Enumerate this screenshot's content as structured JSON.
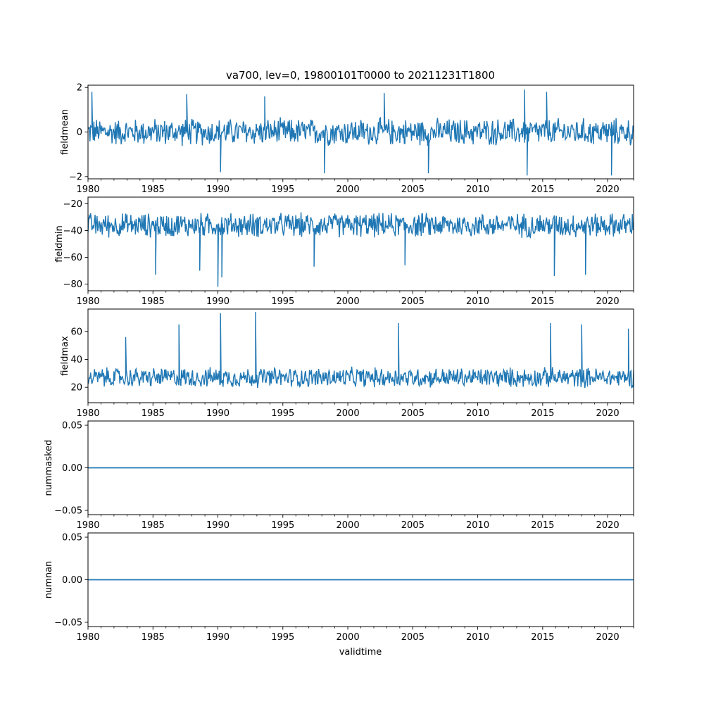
{
  "figure": {
    "title": "va700, lev=0, 19800101T0000 to 20211231T1800",
    "xlabel": "validtime"
  },
  "colors": {
    "series": "#1f77b4",
    "axes": "#000000"
  },
  "chart_data": [
    {
      "type": "line",
      "ylabel": "fieldmean",
      "xlim": [
        1980,
        2022
      ],
      "xticks": [
        1980,
        1985,
        1990,
        1995,
        2000,
        2005,
        2010,
        2015,
        2020
      ],
      "ylim": [
        -2.1,
        2.1
      ],
      "yticks": [
        -2,
        0,
        2
      ],
      "ytick_labels": [
        "−2",
        "0",
        "2"
      ],
      "band": {
        "center": 0.0,
        "spread": 0.6,
        "min": -1.95,
        "max": 1.9
      },
      "spikes": [
        [
          1980.3,
          1.8
        ],
        [
          1987.6,
          1.7
        ],
        [
          1990.2,
          -1.8
        ],
        [
          1993.6,
          1.6
        ],
        [
          1998.2,
          -1.85
        ],
        [
          2002.8,
          1.75
        ],
        [
          2006.2,
          -1.85
        ],
        [
          2013.6,
          1.9
        ],
        [
          2013.8,
          -1.95
        ],
        [
          2015.3,
          1.8
        ],
        [
          2020.3,
          -1.95
        ]
      ],
      "grid": false
    },
    {
      "type": "line",
      "ylabel": "fieldmin",
      "xlim": [
        1980,
        2022
      ],
      "xticks": [
        1980,
        1985,
        1990,
        1995,
        2000,
        2005,
        2010,
        2015,
        2020
      ],
      "ylim": [
        -85,
        -15
      ],
      "yticks": [
        -80,
        -60,
        -40,
        -20
      ],
      "ytick_labels": [
        "−80",
        "−60",
        "−40",
        "−20"
      ],
      "band": {
        "center": -36,
        "spread": 9,
        "min": -82,
        "max": -16
      },
      "spikes": [
        [
          1985.2,
          -73
        ],
        [
          1990.0,
          -82
        ],
        [
          1990.3,
          -75
        ],
        [
          1988.6,
          -70
        ],
        [
          2015.9,
          -74
        ],
        [
          2018.3,
          -73
        ],
        [
          2004.4,
          -66
        ],
        [
          1997.4,
          -67
        ]
      ],
      "grid": false
    },
    {
      "type": "line",
      "ylabel": "fieldmax",
      "xlim": [
        1980,
        2022
      ],
      "xticks": [
        1980,
        1985,
        1990,
        1995,
        2000,
        2005,
        2010,
        2015,
        2020
      ],
      "ylim": [
        9,
        76
      ],
      "yticks": [
        20,
        40,
        60
      ],
      "ytick_labels": [
        "20",
        "40",
        "60"
      ],
      "band": {
        "center": 27,
        "spread": 7,
        "min": 12,
        "max": 74
      },
      "spikes": [
        [
          1990.2,
          73
        ],
        [
          1992.9,
          74
        ],
        [
          1987.0,
          65
        ],
        [
          2003.9,
          66
        ],
        [
          2015.6,
          66
        ],
        [
          2018.0,
          65
        ],
        [
          2021.6,
          62
        ],
        [
          1982.9,
          56
        ]
      ],
      "grid": false
    },
    {
      "type": "line",
      "ylabel": "nummasked",
      "xlim": [
        1980,
        2022
      ],
      "xticks": [
        1980,
        1985,
        1990,
        1995,
        2000,
        2005,
        2010,
        2015,
        2020
      ],
      "ylim": [
        -0.055,
        0.055
      ],
      "yticks": [
        -0.05,
        0.0,
        0.05
      ],
      "ytick_labels": [
        "−0.05",
        "0.00",
        "0.05"
      ],
      "constant": 0.0,
      "grid": false
    },
    {
      "type": "line",
      "ylabel": "numnan",
      "xlim": [
        1980,
        2022
      ],
      "xticks": [
        1980,
        1985,
        1990,
        1995,
        2000,
        2005,
        2010,
        2015,
        2020
      ],
      "ylim": [
        -0.055,
        0.055
      ],
      "yticks": [
        -0.05,
        0.0,
        0.05
      ],
      "ytick_labels": [
        "−0.05",
        "0.00",
        "0.05"
      ],
      "constant": 0.0,
      "grid": false
    }
  ]
}
